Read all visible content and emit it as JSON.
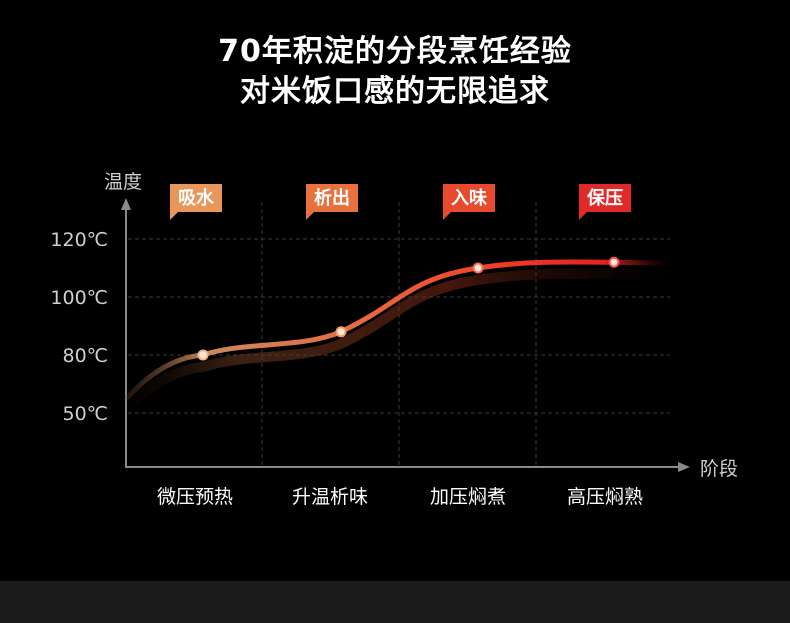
{
  "heading": {
    "line1": "70年积淀的分段烹饪经验",
    "line2": "对米饭口感的无限追求"
  },
  "chart_data": {
    "type": "line",
    "ylabel": "温度",
    "xlabel": "阶段",
    "y_ticks": [
      "120℃",
      "100℃",
      "80℃",
      "50℃"
    ],
    "categories": [
      "微压预热",
      "升温析味",
      "加压焖煮",
      "高压焖熟"
    ],
    "stage_tags": [
      {
        "label": "吸水",
        "color": "#e8965a"
      },
      {
        "label": "析出",
        "color": "#e8723e"
      },
      {
        "label": "入味",
        "color": "#e84a2e"
      },
      {
        "label": "保压",
        "color": "#e02a2a"
      }
    ],
    "points": [
      {
        "stage": "微压预热",
        "y": 80
      },
      {
        "stage": "升温析味",
        "y": 88
      },
      {
        "stage": "加压焖煮",
        "y": 110
      },
      {
        "stage": "高压焖熟",
        "y": 112
      }
    ],
    "grid": true
  }
}
